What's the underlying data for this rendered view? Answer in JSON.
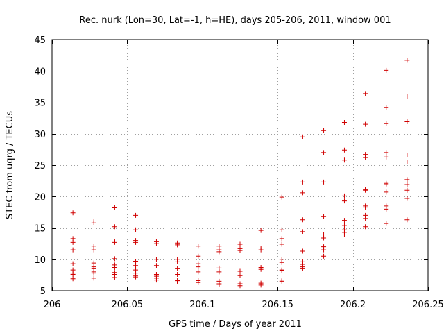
{
  "chart_data": {
    "type": "scatter",
    "title": "Rec. nurk (Lon=30, Lat=-1, h=HE), days 205-206, 2011, window 001",
    "xlabel": "GPS time / Days of year 2011",
    "ylabel": "STEC from uqrg / TECUs",
    "xlim": [
      206,
      206.25
    ],
    "ylim": [
      5,
      45
    ],
    "xticks": [
      206,
      206.05,
      206.1,
      206.15,
      206.2,
      206.25
    ],
    "xtick_labels": [
      "206",
      "206.05",
      "206.1",
      "206.15",
      "206.2",
      "206.25"
    ],
    "yticks": [
      5,
      10,
      15,
      20,
      25,
      30,
      35,
      40,
      45
    ],
    "ytick_labels": [
      "5",
      "10",
      "15",
      "20",
      "25",
      "30",
      "35",
      "40",
      "45"
    ],
    "grid": true,
    "marker": "+",
    "color": "#d00000",
    "series": [
      {
        "name": "STEC",
        "points": [
          [
            206.0139,
            17.4
          ],
          [
            206.0139,
            13.3
          ],
          [
            206.0139,
            12.7
          ],
          [
            206.0139,
            11.5
          ],
          [
            206.0139,
            9.3
          ],
          [
            206.0139,
            8.3
          ],
          [
            206.0139,
            7.8
          ],
          [
            206.0139,
            7.6
          ],
          [
            206.0139,
            6.9
          ],
          [
            206.0278,
            16.1
          ],
          [
            206.0278,
            15.8
          ],
          [
            206.0278,
            12.1
          ],
          [
            206.0278,
            11.8
          ],
          [
            206.0278,
            11.5
          ],
          [
            206.0278,
            9.4
          ],
          [
            206.0278,
            8.8
          ],
          [
            206.0278,
            8.5
          ],
          [
            206.0278,
            8.0
          ],
          [
            206.0278,
            7.8
          ],
          [
            206.0278,
            7.0
          ],
          [
            206.0417,
            18.2
          ],
          [
            206.0417,
            15.2
          ],
          [
            206.0417,
            12.9
          ],
          [
            206.0417,
            12.7
          ],
          [
            206.0417,
            10.1
          ],
          [
            206.0417,
            9.1
          ],
          [
            206.0417,
            8.7
          ],
          [
            206.0417,
            7.9
          ],
          [
            206.0417,
            7.6
          ],
          [
            206.0417,
            7.1
          ],
          [
            206.0556,
            17.0
          ],
          [
            206.0556,
            14.7
          ],
          [
            206.0556,
            13.0
          ],
          [
            206.0556,
            12.7
          ],
          [
            206.0556,
            9.7
          ],
          [
            206.0556,
            9.0
          ],
          [
            206.0556,
            8.3
          ],
          [
            206.0556,
            7.8
          ],
          [
            206.0556,
            7.4
          ],
          [
            206.0556,
            7.2
          ],
          [
            206.0694,
            12.8
          ],
          [
            206.0694,
            12.5
          ],
          [
            206.0694,
            10.0
          ],
          [
            206.0694,
            9.0
          ],
          [
            206.0694,
            7.6
          ],
          [
            206.0694,
            7.3
          ],
          [
            206.0694,
            7.0
          ],
          [
            206.0694,
            6.7
          ],
          [
            206.0833,
            12.6
          ],
          [
            206.0833,
            12.3
          ],
          [
            206.0833,
            10.0
          ],
          [
            206.0833,
            9.6
          ],
          [
            206.0833,
            8.5
          ],
          [
            206.0833,
            7.6
          ],
          [
            206.0833,
            6.6
          ],
          [
            206.0833,
            6.4
          ],
          [
            206.0972,
            12.1
          ],
          [
            206.0972,
            10.5
          ],
          [
            206.0972,
            9.3
          ],
          [
            206.0972,
            8.8
          ],
          [
            206.0972,
            8.0
          ],
          [
            206.0972,
            6.6
          ],
          [
            206.0972,
            6.3
          ],
          [
            206.1111,
            12.1
          ],
          [
            206.1111,
            11.5
          ],
          [
            206.1111,
            11.2
          ],
          [
            206.1111,
            8.6
          ],
          [
            206.1111,
            8.0
          ],
          [
            206.1111,
            6.5
          ],
          [
            206.1111,
            6.1
          ],
          [
            206.1111,
            6.0
          ],
          [
            206.125,
            12.4
          ],
          [
            206.125,
            11.7
          ],
          [
            206.125,
            11.4
          ],
          [
            206.125,
            8.1
          ],
          [
            206.125,
            7.4
          ],
          [
            206.125,
            6.1
          ],
          [
            206.125,
            5.8
          ],
          [
            206.1389,
            14.6
          ],
          [
            206.1389,
            11.8
          ],
          [
            206.1389,
            11.5
          ],
          [
            206.1389,
            8.7
          ],
          [
            206.1389,
            8.4
          ],
          [
            206.1389,
            6.2
          ],
          [
            206.1389,
            5.9
          ],
          [
            206.1528,
            19.9
          ],
          [
            206.1528,
            14.7
          ],
          [
            206.1528,
            13.3
          ],
          [
            206.1528,
            12.4
          ],
          [
            206.1528,
            10.0
          ],
          [
            206.1528,
            9.5
          ],
          [
            206.1528,
            8.3
          ],
          [
            206.1528,
            8.2
          ],
          [
            206.1528,
            6.7
          ],
          [
            206.1528,
            6.5
          ],
          [
            206.1667,
            29.5
          ],
          [
            206.1667,
            22.3
          ],
          [
            206.1667,
            20.6
          ],
          [
            206.1667,
            16.3
          ],
          [
            206.1667,
            14.4
          ],
          [
            206.1667,
            11.3
          ],
          [
            206.1667,
            9.6
          ],
          [
            206.1667,
            9.2
          ],
          [
            206.1667,
            8.8
          ],
          [
            206.1667,
            8.5
          ],
          [
            206.1806,
            30.5
          ],
          [
            206.1806,
            27.0
          ],
          [
            206.1806,
            22.3
          ],
          [
            206.1806,
            16.8
          ],
          [
            206.1806,
            14.0
          ],
          [
            206.1806,
            13.4
          ],
          [
            206.1806,
            12.0
          ],
          [
            206.1806,
            11.5
          ],
          [
            206.1806,
            10.5
          ],
          [
            206.1944,
            31.8
          ],
          [
            206.1944,
            27.4
          ],
          [
            206.1944,
            25.8
          ],
          [
            206.1944,
            20.1
          ],
          [
            206.1944,
            19.3
          ],
          [
            206.1944,
            16.2
          ],
          [
            206.1944,
            15.4
          ],
          [
            206.1944,
            14.7
          ],
          [
            206.1944,
            14.3
          ],
          [
            206.1944,
            14.0
          ],
          [
            206.2083,
            36.4
          ],
          [
            206.2083,
            31.5
          ],
          [
            206.2083,
            26.7
          ],
          [
            206.2083,
            26.2
          ],
          [
            206.2083,
            21.1
          ],
          [
            206.2083,
            21.0
          ],
          [
            206.2083,
            18.5
          ],
          [
            206.2083,
            18.3
          ],
          [
            206.2083,
            17.0
          ],
          [
            206.2083,
            16.5
          ],
          [
            206.2083,
            15.2
          ],
          [
            206.2222,
            40.1
          ],
          [
            206.2222,
            34.2
          ],
          [
            206.2222,
            31.6
          ],
          [
            206.2222,
            27.0
          ],
          [
            206.2222,
            26.3
          ],
          [
            206.2222,
            22.1
          ],
          [
            206.2222,
            21.9
          ],
          [
            206.2222,
            20.7
          ],
          [
            206.2222,
            18.5
          ],
          [
            206.2222,
            18.0
          ],
          [
            206.2222,
            15.7
          ],
          [
            206.2361,
            41.7
          ],
          [
            206.2361,
            36.0
          ],
          [
            206.2361,
            31.9
          ],
          [
            206.2361,
            26.6
          ],
          [
            206.2361,
            25.5
          ],
          [
            206.2361,
            22.7
          ],
          [
            206.2361,
            21.9
          ],
          [
            206.2361,
            21.0
          ],
          [
            206.2361,
            19.7
          ],
          [
            206.2361,
            16.3
          ]
        ]
      }
    ]
  }
}
